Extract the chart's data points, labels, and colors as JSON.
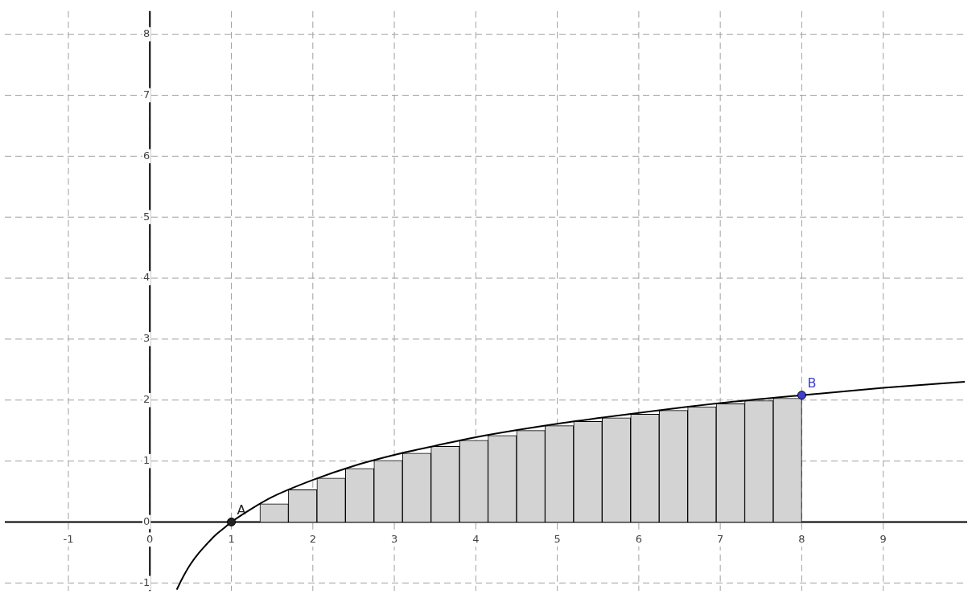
{
  "chart_data": {
    "type": "histogram",
    "xlim": [
      -1.78,
      10.03
    ],
    "ylim": [
      -1.13,
      8.38
    ],
    "xticks": [
      -1,
      0,
      1,
      2,
      3,
      4,
      5,
      6,
      7,
      8,
      9
    ],
    "yticks": [
      -1,
      0,
      1,
      2,
      3,
      4,
      5,
      6,
      7,
      8
    ],
    "grid": true,
    "legend": false,
    "series": [
      {
        "type": "histogram",
        "color": "#d3d3d3",
        "bins": [
          1,
          1.35,
          1.7,
          2.05,
          2.4,
          2.75,
          3.1,
          3.45,
          3.8,
          4.15,
          4.5,
          4.85,
          5.2,
          5.55,
          5.9,
          6.25,
          6.6,
          6.95,
          7.3,
          7.65,
          8
        ],
        "values": [
          0,
          0.3,
          0.53,
          0.72,
          0.88,
          1.01,
          1.13,
          1.24,
          1.34,
          1.42,
          1.5,
          1.58,
          1.65,
          1.71,
          1.77,
          1.83,
          1.89,
          1.94,
          1.99,
          2.03
        ]
      },
      {
        "type": "line",
        "color": "#000000",
        "x": [
          0.33,
          0.4,
          0.5,
          0.6,
          0.7,
          0.8,
          0.9,
          1,
          1.25,
          1.5,
          2,
          2.5,
          3,
          3.5,
          4,
          5,
          6,
          7,
          8,
          9,
          10
        ],
        "values": [
          -1.11,
          -0.92,
          -0.69,
          -0.51,
          -0.36,
          -0.22,
          -0.11,
          0,
          0.22,
          0.41,
          0.69,
          0.92,
          1.1,
          1.25,
          1.39,
          1.61,
          1.79,
          1.95,
          2.08,
          2.2,
          2.3
        ]
      },
      {
        "type": "scatter",
        "colors": [
          "#222222",
          "#3f3fd0"
        ],
        "x": [
          1,
          8
        ],
        "values": [
          0,
          2.08
        ]
      }
    ],
    "annotations": [
      {
        "text": "A",
        "x": 1,
        "y": 0
      },
      {
        "text": "B",
        "x": 8,
        "y": 2.08
      }
    ]
  }
}
